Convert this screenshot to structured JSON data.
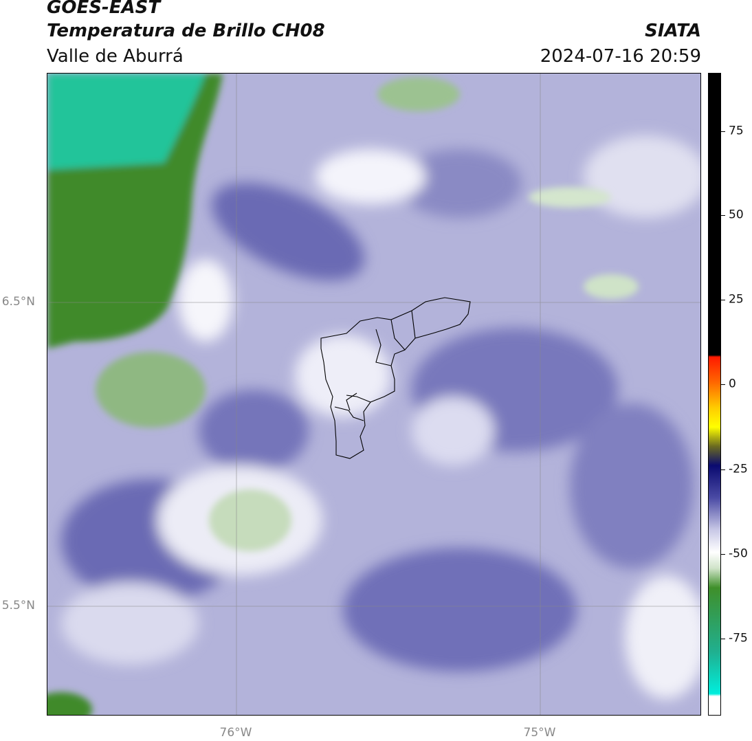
{
  "header": {
    "satellite": "GOES-EAST",
    "product": "Temperatura de Brillo CH08",
    "region": "Valle de Aburrá",
    "source": "SIATA",
    "datetime": "2024-07-16 20:59"
  },
  "map": {
    "latitude_labels": [
      "6.5°N",
      "5.5°N"
    ],
    "longitude_labels": [
      "76°W",
      "75°W"
    ],
    "gridlines": true,
    "overlay": "Valle de Aburrá municipality boundaries"
  },
  "colorbar": {
    "ticks": [
      "75",
      "50",
      "25",
      "0",
      "-25",
      "-50",
      "-75"
    ],
    "colors": {
      "warm_top": "#000000",
      "red": "#ff2a00",
      "orange": "#ff9900",
      "yellow": "#ffff00",
      "olive": "#6b6b20",
      "navy": "#0a0a70",
      "purple_blue": "#5a5aaa",
      "lavender": "#c8c8e6",
      "white": "#ffffff",
      "light_green": "#cfe3c8",
      "green": "#3f8f2a",
      "teal": "#20c4a0",
      "cyan": "#00e8d8"
    }
  }
}
